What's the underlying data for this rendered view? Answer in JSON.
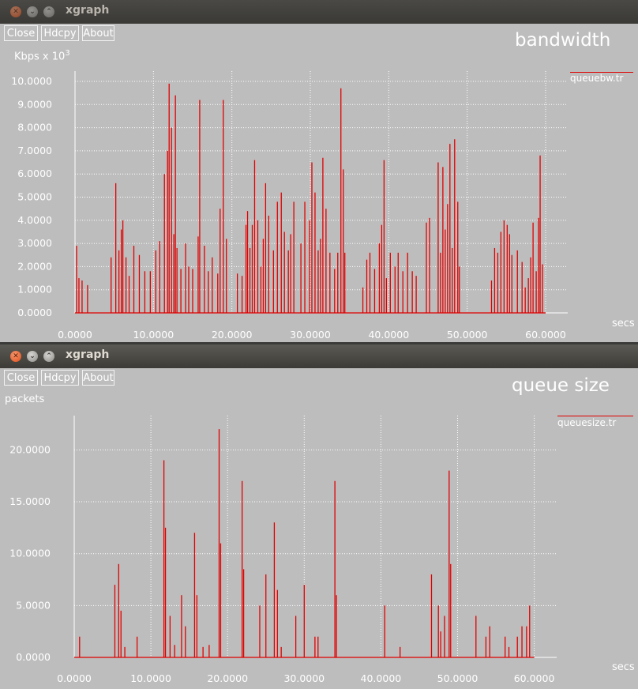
{
  "windows": [
    {
      "title": "xgraph",
      "buttons": {
        "close": "Close",
        "hdcpy": "Hdcpy",
        "about": "About"
      },
      "plot_title": "bandwidth",
      "y_unit": "Kbps x 10",
      "y_unit_exponent": "3",
      "x_unit": "secs",
      "legend": "queuebw.tr"
    },
    {
      "title": "xgraph",
      "buttons": {
        "close": "Close",
        "hdcpy": "Hdcpy",
        "about": "About"
      },
      "plot_title": "queue size",
      "y_unit": "packets",
      "x_unit": "secs",
      "legend": "queuesize.tr"
    }
  ],
  "chart_data": [
    {
      "type": "line",
      "title": "bandwidth",
      "xlabel": "secs",
      "ylabel": "Kbps x 10^3",
      "xlim": [
        0,
        60
      ],
      "ylim": [
        0,
        10
      ],
      "xticks": [
        "0.0000",
        "10.0000",
        "20.0000",
        "30.0000",
        "40.0000",
        "50.0000",
        "60.0000"
      ],
      "yticks": [
        "0.0000",
        "1.0000",
        "2.0000",
        "3.0000",
        "4.0000",
        "5.0000",
        "6.0000",
        "7.0000",
        "8.0000",
        "9.0000",
        "10.0000"
      ],
      "grid": true,
      "legend_position": "top-right",
      "color": "#e00000",
      "series": [
        {
          "name": "queuebw.tr",
          "spikes": [
            [
              0.2,
              2.9
            ],
            [
              0.5,
              1.5
            ],
            [
              0.9,
              1.4
            ],
            [
              1.6,
              1.2
            ],
            [
              4.6,
              2.4
            ],
            [
              5.2,
              5.6
            ],
            [
              5.6,
              2.7
            ],
            [
              5.9,
              3.6
            ],
            [
              6.1,
              4.0
            ],
            [
              6.5,
              2.4
            ],
            [
              6.9,
              1.6
            ],
            [
              7.5,
              2.9
            ],
            [
              8.2,
              2.5
            ],
            [
              8.9,
              1.8
            ],
            [
              9.6,
              1.8
            ],
            [
              10.3,
              2.7
            ],
            [
              10.8,
              3.1
            ],
            [
              11.4,
              6.0
            ],
            [
              11.8,
              7.0
            ],
            [
              12.0,
              9.9
            ],
            [
              12.3,
              8.0
            ],
            [
              12.6,
              3.4
            ],
            [
              12.8,
              9.4
            ],
            [
              13.0,
              2.8
            ],
            [
              13.5,
              1.9
            ],
            [
              14.1,
              3.0
            ],
            [
              14.5,
              2.0
            ],
            [
              15.0,
              1.9
            ],
            [
              15.7,
              3.3
            ],
            [
              15.9,
              9.2
            ],
            [
              16.5,
              2.9
            ],
            [
              17.0,
              1.8
            ],
            [
              17.5,
              2.4
            ],
            [
              18.2,
              1.7
            ],
            [
              18.5,
              4.5
            ],
            [
              18.9,
              9.2
            ],
            [
              19.3,
              3.2
            ],
            [
              20.7,
              1.7
            ],
            [
              21.3,
              1.6
            ],
            [
              21.8,
              3.8
            ],
            [
              22.0,
              4.4
            ],
            [
              22.3,
              2.8
            ],
            [
              22.6,
              3.8
            ],
            [
              22.9,
              6.6
            ],
            [
              23.3,
              4.0
            ],
            [
              23.7,
              2.0
            ],
            [
              24.0,
              3.2
            ],
            [
              24.3,
              5.6
            ],
            [
              24.7,
              4.2
            ],
            [
              25.3,
              2.7
            ],
            [
              25.8,
              4.8
            ],
            [
              26.3,
              5.2
            ],
            [
              26.7,
              3.5
            ],
            [
              27.2,
              2.7
            ],
            [
              27.5,
              3.4
            ],
            [
              27.9,
              4.8
            ],
            [
              28.8,
              3.0
            ],
            [
              29.3,
              4.8
            ],
            [
              29.9,
              4.0
            ],
            [
              30.2,
              6.5
            ],
            [
              30.6,
              5.2
            ],
            [
              31.0,
              2.7
            ],
            [
              31.3,
              3.2
            ],
            [
              31.6,
              6.7
            ],
            [
              32.0,
              4.5
            ],
            [
              32.5,
              2.6
            ],
            [
              33.1,
              1.9
            ],
            [
              33.5,
              2.6
            ],
            [
              33.9,
              9.7
            ],
            [
              34.2,
              6.2
            ],
            [
              34.4,
              2.6
            ],
            [
              36.7,
              1.1
            ],
            [
              37.2,
              2.3
            ],
            [
              37.6,
              2.6
            ],
            [
              38.2,
              1.9
            ],
            [
              38.8,
              3.0
            ],
            [
              39.1,
              3.8
            ],
            [
              39.4,
              6.6
            ],
            [
              39.7,
              1.5
            ],
            [
              40.2,
              2.6
            ],
            [
              40.8,
              2.0
            ],
            [
              41.2,
              2.6
            ],
            [
              41.8,
              1.8
            ],
            [
              42.4,
              2.6
            ],
            [
              43.0,
              1.8
            ],
            [
              43.5,
              1.6
            ],
            [
              44.8,
              3.9
            ],
            [
              45.2,
              4.1
            ],
            [
              46.3,
              6.5
            ],
            [
              46.6,
              2.6
            ],
            [
              46.9,
              6.3
            ],
            [
              47.2,
              3.6
            ],
            [
              47.5,
              4.7
            ],
            [
              47.8,
              7.3
            ],
            [
              48.1,
              2.8
            ],
            [
              48.4,
              7.5
            ],
            [
              48.8,
              4.8
            ],
            [
              49.0,
              2.0
            ],
            [
              53.1,
              1.4
            ],
            [
              53.5,
              2.8
            ],
            [
              53.9,
              2.6
            ],
            [
              54.3,
              3.5
            ],
            [
              54.7,
              4.0
            ],
            [
              55.1,
              3.8
            ],
            [
              55.4,
              3.4
            ],
            [
              55.7,
              2.5
            ],
            [
              56.4,
              2.7
            ],
            [
              57.0,
              2.2
            ],
            [
              57.4,
              1.1
            ],
            [
              57.8,
              1.5
            ],
            [
              58.1,
              2.4
            ],
            [
              58.4,
              3.9
            ],
            [
              58.8,
              1.8
            ],
            [
              59.1,
              4.1
            ],
            [
              59.3,
              6.8
            ],
            [
              59.6,
              2.1
            ]
          ]
        }
      ]
    },
    {
      "type": "line",
      "title": "queue size",
      "xlabel": "secs",
      "ylabel": "packets",
      "xlim": [
        0,
        62
      ],
      "ylim": [
        0,
        23
      ],
      "xticks": [
        "0.0000",
        "10.0000",
        "20.0000",
        "30.0000",
        "40.0000",
        "50.0000",
        "60.0000"
      ],
      "yticks": [
        "0.0000",
        "5.0000",
        "10.0000",
        "15.0000",
        "20.0000"
      ],
      "grid": true,
      "legend_position": "top-right",
      "color": "#e00000",
      "series": [
        {
          "name": "queuesize.tr",
          "spikes": [
            [
              0.7,
              2.0
            ],
            [
              5.3,
              7.0
            ],
            [
              5.8,
              9.0
            ],
            [
              6.1,
              4.5
            ],
            [
              6.6,
              1.0
            ],
            [
              8.2,
              2.0
            ],
            [
              11.7,
              19.0
            ],
            [
              11.9,
              12.5
            ],
            [
              12.5,
              4.0
            ],
            [
              13.1,
              1.2
            ],
            [
              14.0,
              6.0
            ],
            [
              14.5,
              3.0
            ],
            [
              15.7,
              12.0
            ],
            [
              16.0,
              6.0
            ],
            [
              16.8,
              1.0
            ],
            [
              17.6,
              1.2
            ],
            [
              18.9,
              22.0
            ],
            [
              19.1,
              11.0
            ],
            [
              21.9,
              17.0
            ],
            [
              22.1,
              8.5
            ],
            [
              24.2,
              5.0
            ],
            [
              25.0,
              8.0
            ],
            [
              26.1,
              13.0
            ],
            [
              26.5,
              6.5
            ],
            [
              27.0,
              1.0
            ],
            [
              28.9,
              4.0
            ],
            [
              30.0,
              7.0
            ],
            [
              31.4,
              2.0
            ],
            [
              31.8,
              2.0
            ],
            [
              34.0,
              17.0
            ],
            [
              34.2,
              6.0
            ],
            [
              40.5,
              5.0
            ],
            [
              42.5,
              1.0
            ],
            [
              46.6,
              8.0
            ],
            [
              47.5,
              5.0
            ],
            [
              47.8,
              2.5
            ],
            [
              48.3,
              4.0
            ],
            [
              48.9,
              18.0
            ],
            [
              49.1,
              9.0
            ],
            [
              52.4,
              4.0
            ],
            [
              53.7,
              2.0
            ],
            [
              54.2,
              3.0
            ],
            [
              56.2,
              2.0
            ],
            [
              56.7,
              1.0
            ],
            [
              57.8,
              2.0
            ],
            [
              58.4,
              3.0
            ],
            [
              59.0,
              3.0
            ],
            [
              59.4,
              5.0
            ]
          ]
        }
      ]
    }
  ]
}
